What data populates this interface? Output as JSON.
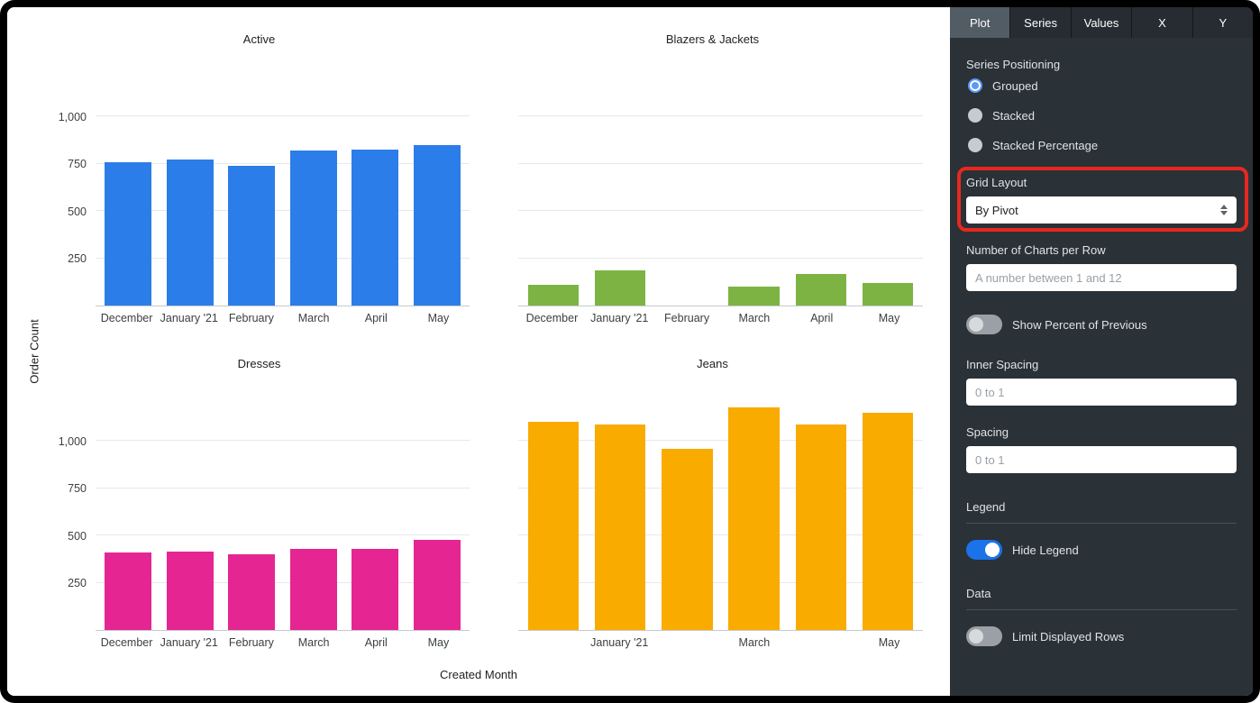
{
  "colors": {
    "accent_blue": "#1a73e8",
    "annotation_red": "#e8281e",
    "panel_background": "#2a3137",
    "series_active": "#2b7de9",
    "series_blazers_jackets": "#7cb342",
    "series_dresses": "#e52592",
    "series_jeans": "#f9ab00"
  },
  "chart_area": {
    "x_axis_label": "Created Month",
    "y_axis_label": "Order Count"
  },
  "chart_data": [
    {
      "type": "bar",
      "title": "Active",
      "color": "#2b7de9",
      "categories": [
        "December",
        "January '21",
        "February",
        "March",
        "April",
        "May"
      ],
      "values": [
        760,
        775,
        740,
        820,
        825,
        850
      ],
      "ylim": [
        0,
        1250
      ],
      "yticks": [
        {
          "value": 250,
          "label": "250"
        },
        {
          "value": 500,
          "label": "500"
        },
        {
          "value": 750,
          "label": "750"
        },
        {
          "value": 1000,
          "label": "1,000"
        }
      ],
      "show_ytick_labels": true,
      "x_tick_labels": [
        "December",
        "January '21",
        "February",
        "March",
        "April",
        "May"
      ],
      "grid": true,
      "legend": "hidden"
    },
    {
      "type": "bar",
      "title": "Blazers & Jackets",
      "color": "#7cb342",
      "categories": [
        "December",
        "January '21",
        "February",
        "March",
        "April",
        "May"
      ],
      "values": [
        110,
        185,
        0,
        100,
        165,
        120
      ],
      "ylim": [
        0,
        1250
      ],
      "yticks": [
        {
          "value": 250,
          "label": "250"
        },
        {
          "value": 500,
          "label": "500"
        },
        {
          "value": 750,
          "label": "750"
        },
        {
          "value": 1000,
          "label": "1,000"
        }
      ],
      "show_ytick_labels": false,
      "x_tick_labels": [
        "December",
        "January '21",
        "February",
        "March",
        "April",
        "May"
      ],
      "grid": true,
      "legend": "hidden"
    },
    {
      "type": "bar",
      "title": "Dresses",
      "color": "#e52592",
      "categories": [
        "December",
        "January '21",
        "February",
        "March",
        "April",
        "May"
      ],
      "values": [
        410,
        415,
        400,
        430,
        430,
        475
      ],
      "ylim": [
        0,
        1250
      ],
      "yticks": [
        {
          "value": 250,
          "label": "250"
        },
        {
          "value": 500,
          "label": "500"
        },
        {
          "value": 750,
          "label": "750"
        },
        {
          "value": 1000,
          "label": "1,000"
        }
      ],
      "show_ytick_labels": true,
      "x_tick_labels": [
        "December",
        "January '21",
        "February",
        "March",
        "April",
        "May"
      ],
      "grid": true,
      "legend": "hidden"
    },
    {
      "type": "bar",
      "title": "Jeans",
      "color": "#f9ab00",
      "categories": [
        "December",
        "January '21",
        "February",
        "March",
        "April",
        "May"
      ],
      "values": [
        1100,
        1090,
        960,
        1180,
        1090,
        1150
      ],
      "ylim": [
        0,
        1250
      ],
      "yticks": [
        {
          "value": 250,
          "label": ""
        },
        {
          "value": 500,
          "label": ""
        },
        {
          "value": 750,
          "label": ""
        },
        {
          "value": 1000,
          "label": ""
        }
      ],
      "show_ytick_labels": false,
      "x_tick_labels": [
        "",
        "January '21",
        "",
        "March",
        "",
        "May"
      ],
      "grid": true,
      "legend": "hidden"
    }
  ],
  "panel": {
    "tabs": [
      {
        "label": "Plot",
        "active": true
      },
      {
        "label": "Series",
        "active": false
      },
      {
        "label": "Values",
        "active": false
      },
      {
        "label": "X",
        "active": false
      },
      {
        "label": "Y",
        "active": false
      }
    ],
    "series_positioning": {
      "label": "Series Positioning",
      "options": [
        {
          "label": "Grouped",
          "selected": true
        },
        {
          "label": "Stacked",
          "selected": false
        },
        {
          "label": "Stacked Percentage",
          "selected": false
        }
      ]
    },
    "grid_layout": {
      "label": "Grid Layout",
      "value": "By Pivot",
      "annotated": true
    },
    "charts_per_row": {
      "label": "Number of Charts per Row",
      "placeholder": "A number between 1 and 12",
      "value": ""
    },
    "show_percent_of_previous": {
      "label": "Show Percent of Previous",
      "on": false
    },
    "inner_spacing": {
      "label": "Inner Spacing",
      "placeholder": "0 to 1",
      "value": ""
    },
    "spacing": {
      "label": "Spacing",
      "placeholder": "0 to 1",
      "value": ""
    },
    "legend_section": {
      "label": "Legend"
    },
    "hide_legend": {
      "label": "Hide Legend",
      "on": true
    },
    "data_section": {
      "label": "Data"
    },
    "limit_displayed_rows": {
      "label": "Limit Displayed Rows",
      "on": false
    }
  }
}
